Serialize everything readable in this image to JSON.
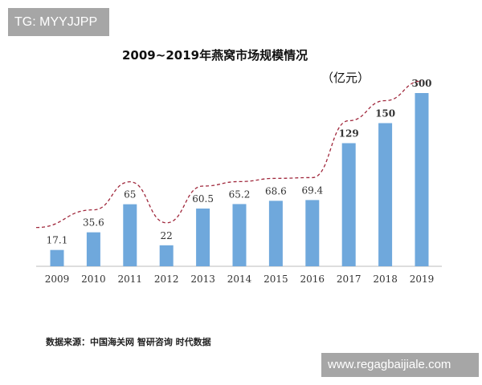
{
  "watermark_top": "TG: MYYJJPP",
  "watermark_bottom": "www.regagbaijiale.com",
  "source": "数据来源：中国海关网 智研咨询 时代数据",
  "chart_data": {
    "type": "bar",
    "title": "2009~2019年燕窝市场规模情况",
    "unit": "（亿元）",
    "categories": [
      "2009",
      "2010",
      "2011",
      "2012",
      "2013",
      "2014",
      "2015",
      "2016",
      "2017",
      "2018",
      "2019"
    ],
    "values": [
      17.1,
      35.6,
      65,
      22,
      60.5,
      65.2,
      68.6,
      69.4,
      129,
      150,
      300
    ],
    "labels": [
      "17.1",
      "35.6",
      "65",
      "22",
      "60.5",
      "65.2",
      "68.6",
      "69.4",
      "129",
      "150",
      "300"
    ],
    "bar_color": "#6fa8dc",
    "trend_line": {
      "style": "dashed",
      "color": "#a0283c"
    },
    "grid": false
  }
}
